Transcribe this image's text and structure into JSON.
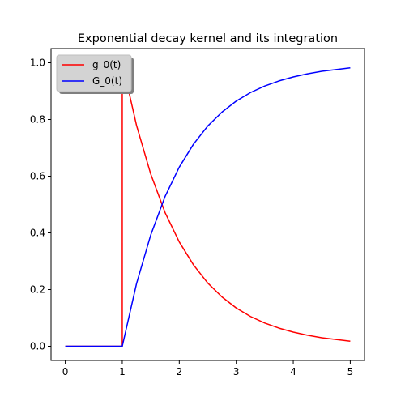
{
  "chart_data": {
    "type": "line",
    "title": "Exponential decay kernel and its integration",
    "xlabel": "",
    "ylabel": "",
    "xlim": [
      -0.25,
      5.25
    ],
    "ylim": [
      -0.05,
      1.05
    ],
    "xticks": [
      0,
      1,
      2,
      3,
      4,
      5
    ],
    "xtick_labels": [
      "0",
      "1",
      "2",
      "3",
      "4",
      "5"
    ],
    "yticks": [
      0.0,
      0.2,
      0.4,
      0.6,
      0.8,
      1.0
    ],
    "ytick_labels": [
      "0.0",
      "0.2",
      "0.4",
      "0.6",
      "0.8",
      "1.0"
    ],
    "grid": false,
    "legend_position": "top-left",
    "x": [
      0,
      1,
      1,
      1.25,
      1.5,
      1.75,
      2,
      2.25,
      2.5,
      2.75,
      3,
      3.25,
      3.5,
      3.75,
      4,
      4.25,
      4.5,
      4.75,
      5
    ],
    "series": [
      {
        "name": "g_0(t)",
        "color": "#ff0000",
        "values": [
          0,
          0,
          1,
          0.779,
          0.607,
          0.472,
          0.368,
          0.287,
          0.223,
          0.174,
          0.135,
          0.105,
          0.082,
          0.064,
          0.05,
          0.039,
          0.03,
          0.024,
          0.018
        ]
      },
      {
        "name": "G_0(t)",
        "color": "#0000ff",
        "values": [
          0,
          0,
          0,
          0.221,
          0.393,
          0.528,
          0.632,
          0.713,
          0.777,
          0.826,
          0.865,
          0.895,
          0.918,
          0.936,
          0.95,
          0.961,
          0.97,
          0.976,
          0.982
        ]
      }
    ]
  }
}
